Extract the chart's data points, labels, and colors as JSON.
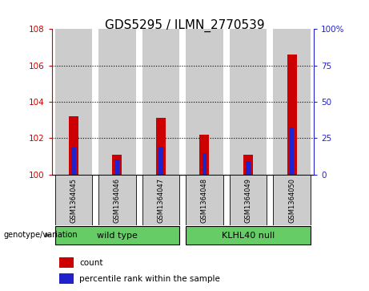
{
  "title": "GDS5295 / ILMN_2770539",
  "samples": [
    "GSM1364045",
    "GSM1364046",
    "GSM1364047",
    "GSM1364048",
    "GSM1364049",
    "GSM1364050"
  ],
  "red_values": [
    103.2,
    101.1,
    103.1,
    102.2,
    101.1,
    106.6
  ],
  "blue_values": [
    101.5,
    100.85,
    101.55,
    101.2,
    100.75,
    102.6
  ],
  "ylim_left": [
    100,
    108
  ],
  "ylim_right": [
    0,
    100
  ],
  "yticks_left": [
    100,
    102,
    104,
    106,
    108
  ],
  "yticks_right": [
    0,
    25,
    50,
    75,
    100
  ],
  "ytick_labels_right": [
    "0",
    "25",
    "50",
    "75",
    "100%"
  ],
  "bar_bg_color": "#cccccc",
  "red_color": "#cc0000",
  "blue_color": "#2222cc",
  "title_fontsize": 11,
  "axis_color_left": "#cc0000",
  "axis_color_right": "#2222cc",
  "group_color": "#66cc66",
  "group_border_color": "#000000"
}
